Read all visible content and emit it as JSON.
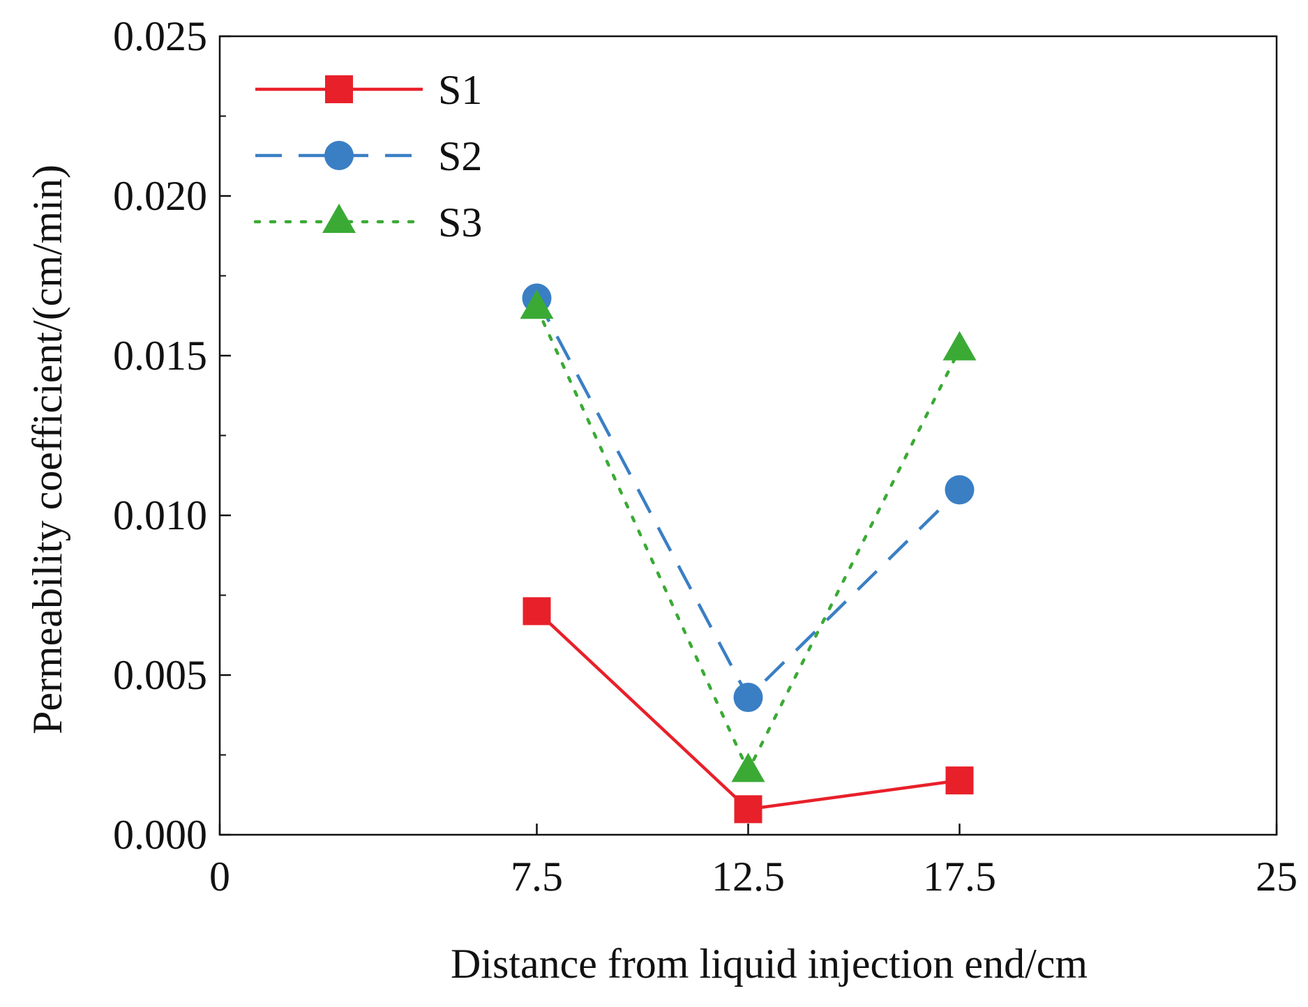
{
  "chart_data": {
    "type": "line",
    "title": "",
    "xlabel": "Distance from liquid injection end/cm",
    "ylabel": "Permeability coefficient/(cm/min)",
    "xlim": [
      0,
      25
    ],
    "ylim": [
      0,
      0.025
    ],
    "x_ticks": [
      "0",
      "7.5",
      "12.5",
      "17.5",
      "25"
    ],
    "x_tick_values": [
      0,
      7.5,
      12.5,
      17.5,
      25
    ],
    "y_ticks": [
      "0.000",
      "0.005",
      "0.010",
      "0.015",
      "0.020",
      "0.025"
    ],
    "y_tick_values": [
      0,
      0.005,
      0.01,
      0.015,
      0.02,
      0.025
    ],
    "grid": false,
    "legend_position": "top-left",
    "x": [
      7.5,
      12.5,
      17.5
    ],
    "series": [
      {
        "name": "S1",
        "values": [
          0.007,
          0.0008,
          0.0017
        ],
        "color": "#e8202a",
        "line_style": "solid",
        "marker": "square"
      },
      {
        "name": "S2",
        "values": [
          0.0168,
          0.0043,
          0.0108
        ],
        "color": "#3a7fc4",
        "line_style": "dashed",
        "marker": "circle"
      },
      {
        "name": "S3",
        "values": [
          0.0165,
          0.002,
          0.0152
        ],
        "color": "#3aaa35",
        "line_style": "dotted",
        "marker": "triangle"
      }
    ]
  }
}
